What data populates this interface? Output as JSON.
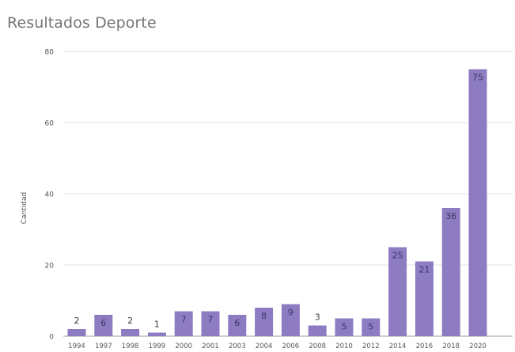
{
  "chart_data": {
    "type": "bar",
    "title": "Resultados Deporte",
    "xlabel": "",
    "ylabel": "Cantidad",
    "categories": [
      "1994",
      "1997",
      "1998",
      "1999",
      "2000",
      "2001",
      "2003",
      "2004",
      "2006",
      "2008",
      "2010",
      "2012",
      "2014",
      "2016",
      "2018",
      "2020"
    ],
    "values": [
      2,
      6,
      2,
      1,
      7,
      7,
      6,
      8,
      9,
      3,
      5,
      5,
      25,
      21,
      36,
      75
    ],
    "ylim": [
      0,
      80
    ],
    "yticks": [
      0,
      20,
      40,
      60,
      80
    ],
    "grid": true,
    "legend": "none",
    "bar_color": "#8E7CC3",
    "label_color_inside": "#3d3566",
    "label_color_outside": "#3a3a3a",
    "grid_color": "#e0e0e0"
  }
}
